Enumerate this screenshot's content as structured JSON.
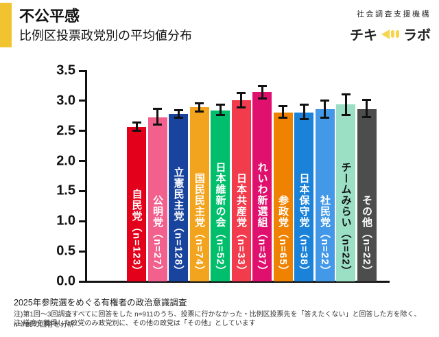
{
  "header": {
    "title": "不公平感",
    "subtitle": "比例区投票政党別の平均値分布",
    "accent_color": "#F0C32F",
    "org": {
      "name": "社会調査支援機構",
      "logo_left": "チキ",
      "logo_right": "ラボ",
      "logo_icon_color": "#F5D44E"
    }
  },
  "chart_data": {
    "type": "bar",
    "title": "不公平感 比例区投票政党別の平均値分布",
    "xlabel": "",
    "ylabel": "",
    "ylim": [
      0.0,
      3.5
    ],
    "ytick_step": 0.5,
    "ytick_labels": [
      "0.0",
      "0.5",
      "1.0",
      "1.5",
      "2.0",
      "2.5",
      "3.0",
      "3.5"
    ],
    "grid": false,
    "legend": "none",
    "error_bars": true,
    "categories": [
      "自民党",
      "公明党",
      "立憲民主党",
      "国民民主党",
      "日本維新の会",
      "日本共産党",
      "れいわ新選組",
      "参政党",
      "日本保守党",
      "社民党",
      "チームみらい",
      "その他"
    ],
    "n": [
      123,
      27,
      128,
      74,
      52,
      33,
      37,
      65,
      38,
      22,
      22,
      22
    ],
    "bar_labels": [
      "自民党（n=123）",
      "公明党（n=27）",
      "立憲民主党（n=128）",
      "国民民主党（n=74）",
      "日本維新の会（n=52）",
      "日本共産党（n=33）",
      "れいわ新選組（n=37）",
      "参政党（n=65）",
      "日本保守党（n=38）",
      "社民党（n=22）",
      "チームみらい（n=22）",
      "その他（n=22）"
    ],
    "values": [
      2.57,
      2.73,
      2.78,
      2.9,
      2.84,
      3.01,
      3.15,
      2.81,
      2.81,
      2.86,
      2.94,
      2.86
    ],
    "error_low": [
      2.5,
      2.6,
      2.72,
      2.82,
      2.76,
      2.89,
      3.04,
      2.72,
      2.7,
      2.72,
      2.77,
      2.73
    ],
    "error_high": [
      2.64,
      2.87,
      2.84,
      2.96,
      2.93,
      3.13,
      3.24,
      2.91,
      2.93,
      3.0,
      3.11,
      3.01
    ],
    "bar_colors": [
      "#E3001B",
      "#F2608E",
      "#18449E",
      "#F2A41F",
      "#00BE6C",
      "#F23B4C",
      "#E0106E",
      "#EF8200",
      "#1A82D9",
      "#4498E8",
      "#9BE0C5",
      "#4D4D4D"
    ],
    "label_text_colors": [
      "#FFFFFF",
      "#FFFFFF",
      "#FFFFFF",
      "#FFFFFF",
      "#FFFFFF",
      "#FFFFFF",
      "#FFFFFF",
      "#FFFFFF",
      "#FFFFFF",
      "#FFFFFF",
      "#111111",
      "#FFFFFF"
    ]
  },
  "footer": {
    "source": "2025年参院選をめぐる有権者の政治意識調査",
    "notes": [
      "注)第1回～3回調査すべてに回答をした n=911のうち、投票に行かなかった・比例区投票先を「答えたくない」と回答した方を除く、n=725の回答を分析",
      "注)議席を獲得した政党のみ政党別に、その他の政党は「その他」としています"
    ]
  }
}
